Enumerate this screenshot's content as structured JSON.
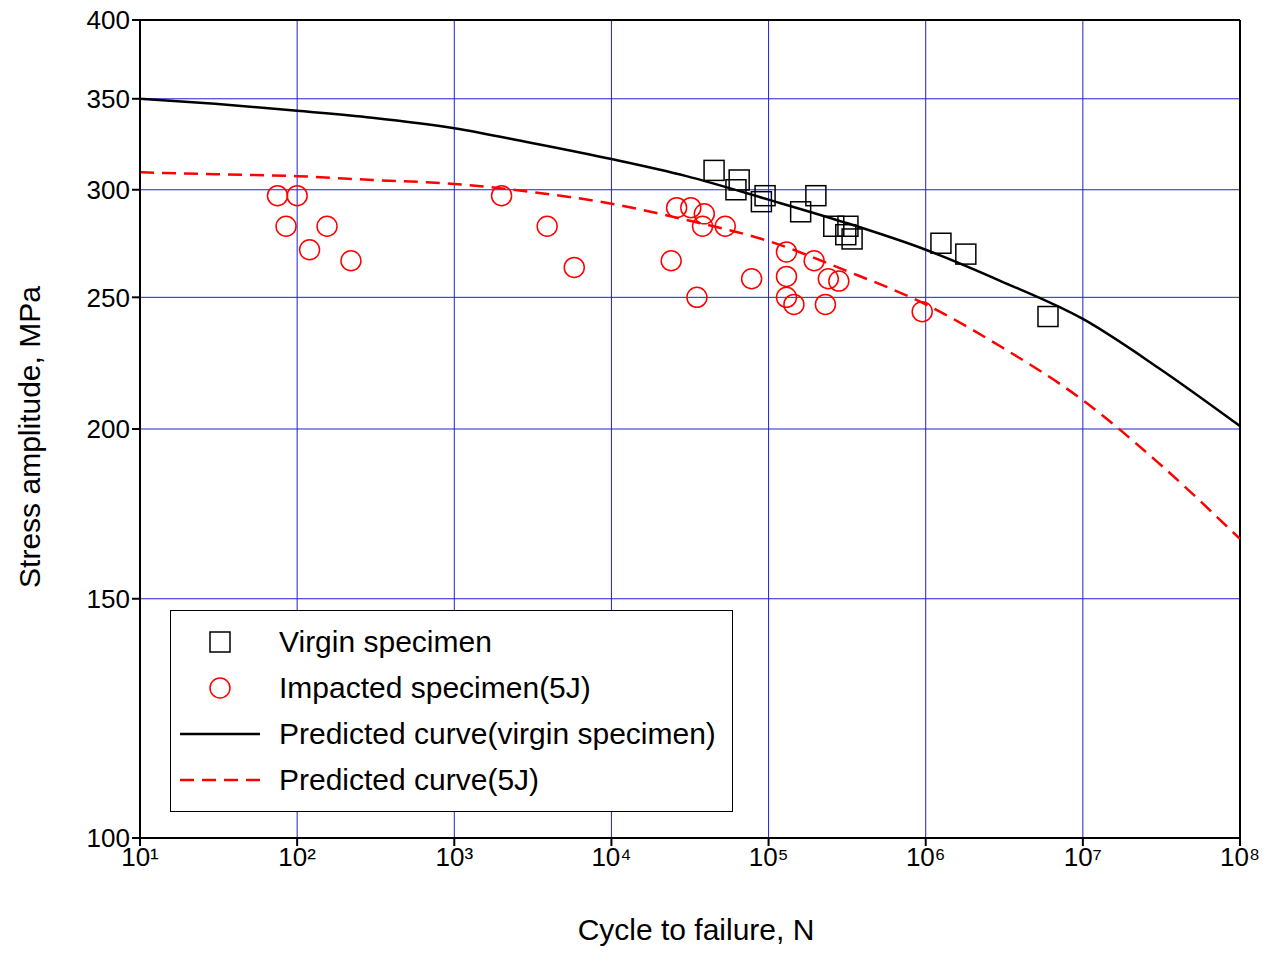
{
  "chart_data": {
    "type": "scatter",
    "x_label": "Cycle to failure, N",
    "y_label": "Stress amplitude, MPa",
    "log": true,
    "grid": true,
    "legend": "lower left",
    "xlim": [
      10,
      100000000
    ],
    "ylim": [
      100,
      400
    ],
    "xticks": [
      {
        "value": 10,
        "label": "10¹"
      },
      {
        "value": 100,
        "label": "10²"
      },
      {
        "value": 1000,
        "label": "10³"
      },
      {
        "value": 10000,
        "label": "10⁴"
      },
      {
        "value": 100000,
        "label": "10⁵"
      },
      {
        "value": 1000000,
        "label": "10⁶"
      },
      {
        "value": 10000000,
        "label": "10⁷"
      },
      {
        "value": 100000000,
        "label": "10⁸"
      }
    ],
    "yticks": [
      100,
      150,
      200,
      250,
      300,
      350,
      400
    ],
    "series": [
      {
        "name": "Virgin specimen",
        "type": "scatter",
        "marker": "square",
        "color": "#000000",
        "x": [
          45000,
          65000,
          62000,
          90000,
          95000,
          160000,
          200000,
          260000,
          320000,
          310000,
          340000,
          1250000,
          1800000,
          6000000
        ],
        "values": [
          310,
          305,
          300,
          294,
          297,
          289,
          297,
          282,
          282,
          278,
          276,
          274,
          269,
          242
        ]
      },
      {
        "name": "Impacted specimen(5J)",
        "type": "scatter",
        "marker": "circle",
        "color": "#ff0000",
        "x": [
          75,
          100,
          85,
          120,
          155,
          220,
          2000,
          3900,
          5800,
          24000,
          26000,
          32000,
          35000,
          38000,
          39000,
          53000,
          78000,
          130000,
          130000,
          130000,
          145000,
          195000,
          230000,
          240000,
          280000,
          950000
        ],
        "values": [
          297,
          297,
          282,
          271,
          282,
          266,
          297,
          282,
          263,
          266,
          291,
          291,
          250,
          282,
          288,
          282,
          258,
          270,
          259,
          250,
          247,
          266,
          247,
          258,
          257,
          244
        ]
      },
      {
        "name": "Predicted curve(virgin specimen)",
        "type": "line",
        "line_style": "solid",
        "color": "#000000",
        "x": [
          10,
          30,
          100,
          300,
          1000,
          3000,
          10000,
          30000,
          100000,
          300000,
          1000000,
          3000000,
          10000000,
          30000000,
          100000000
        ],
        "values": [
          350,
          347,
          343,
          339,
          333,
          325,
          316,
          307,
          295,
          284,
          271,
          257,
          241,
          222,
          201
        ]
      },
      {
        "name": "Predicted curve(5J)",
        "type": "line",
        "line_style": "dashed",
        "color": "#ff0000",
        "x": [
          10,
          30,
          100,
          300,
          1000,
          3000,
          10000,
          30000,
          100000,
          300000,
          1000000,
          3000000,
          10000000,
          30000000,
          100000000
        ],
        "values": [
          309,
          308,
          307,
          305,
          303,
          299,
          293,
          285,
          275,
          262,
          247,
          230,
          210,
          189,
          166
        ]
      }
    ]
  }
}
